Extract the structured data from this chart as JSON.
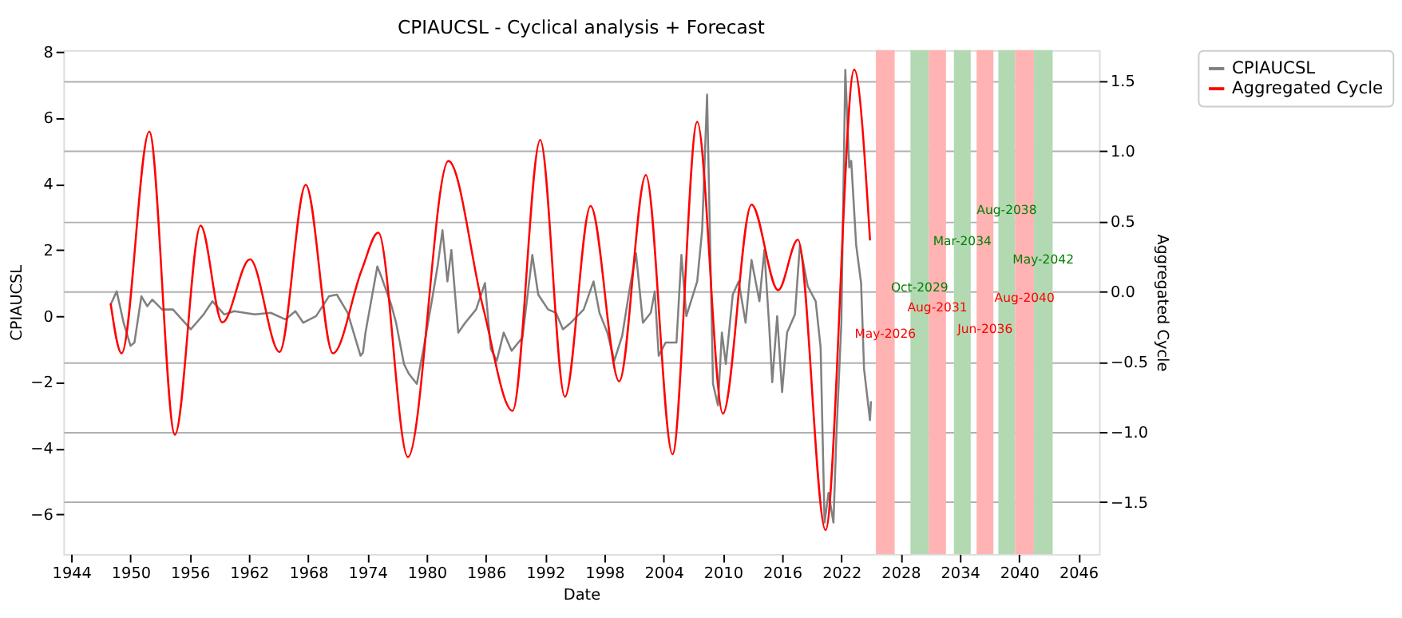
{
  "chart_data": {
    "type": "line",
    "title": "CPIAUCSL - Cyclical analysis + Forecast",
    "xlabel": "Date",
    "ylabel": "CPIAUCSL",
    "y2label": "Aggregated Cycle",
    "xlim": [
      1943.2,
      2048.1
    ],
    "xticks": [
      1944,
      1950,
      1956,
      1962,
      1968,
      1974,
      1980,
      1986,
      1992,
      1998,
      2004,
      2010,
      2016,
      2022,
      2028,
      2034,
      2040,
      2046
    ],
    "ylim": [
      -7.2,
      8.05
    ],
    "yticks": [
      -6,
      -4,
      -2,
      0,
      2,
      4,
      6,
      8
    ],
    "y2lim": [
      -1.87,
      1.72
    ],
    "y2ticks": [
      -1.5,
      {
        "value": -1,
        "label": "−1.0"
      },
      -0.5,
      {
        "value": 0,
        "label": "0.0"
      },
      0.5,
      {
        "value": 1,
        "label": "1.0"
      },
      1.5
    ],
    "grid": "y2",
    "legend": "right",
    "series": [
      {
        "name": "CPIAUCSL",
        "color": "#808080",
        "x": [
          1948.0,
          1948.6,
          1949.3,
          1950.0,
          1950.4,
          1951.1,
          1951.7,
          1952.2,
          1953.2,
          1954.3,
          1956.1,
          1957.4,
          1958.3,
          1959.5,
          1960.5,
          1962.6,
          1964.2,
          1965.7,
          1966.7,
          1967.5,
          1968.8,
          1970.1,
          1970.9,
          1972.0,
          1973.0,
          1973.3,
          1973.55,
          1973.8,
          1975.0,
          1975.4,
          1976.4,
          1976.9,
          1977.7,
          1978.2,
          1979.0,
          1979.7,
          1980.6,
          1981.1,
          1981.6,
          1982.1,
          1982.5,
          1983.2,
          1983.9,
          1985.0,
          1985.9,
          1986.5,
          1987.1,
          1987.8,
          1988.6,
          1989.7,
          1990.7,
          1991.3,
          1992.3,
          1993.1,
          1993.8,
          1994.6,
          1995.9,
          1996.9,
          1997.5,
          1998.3,
          1999.0,
          1999.8,
          2000.6,
          2001.2,
          2001.9,
          2002.7,
          2003.1,
          2003.5,
          2004.2,
          2005.3,
          2005.8,
          2006.3,
          2007.4,
          2007.9,
          2008.4,
          2009.0,
          2009.5,
          2009.9,
          2010.3,
          2011.0,
          2011.6,
          2012.3,
          2012.9,
          2013.7,
          2014.2,
          2014.7,
          2015.0,
          2015.5,
          2016.0,
          2016.5,
          2017.3,
          2017.8,
          2018.6,
          2019.4,
          2019.9,
          2020.3,
          2020.7,
          2021.2,
          2021.5,
          2022.0,
          2022.4,
          2022.8,
          2023.0,
          2023.5,
          2024.0,
          2024.3,
          2024.9,
          2025.0
        ],
        "values": [
          0.36,
          0.75,
          -0.2,
          -0.9,
          -0.8,
          0.6,
          0.3,
          0.5,
          0.2,
          0.2,
          -0.4,
          0.05,
          0.45,
          0.05,
          0.15,
          0.05,
          0.1,
          -0.1,
          0.15,
          -0.2,
          0.0,
          0.6,
          0.65,
          0.1,
          -0.9,
          -1.2,
          -1.1,
          -0.5,
          1.5,
          1.2,
          0.35,
          -0.2,
          -1.45,
          -1.75,
          -2.05,
          -0.95,
          0.6,
          1.5,
          2.6,
          1.05,
          2.0,
          -0.5,
          -0.2,
          0.2,
          1.0,
          -1.0,
          -1.35,
          -0.5,
          -1.05,
          -0.65,
          1.85,
          0.65,
          0.2,
          0.1,
          -0.4,
          -0.2,
          0.2,
          1.05,
          0.1,
          -0.5,
          -1.35,
          -0.6,
          0.9,
          1.9,
          -0.2,
          0.1,
          0.75,
          -1.2,
          -0.8,
          -0.8,
          1.85,
          0.0,
          1.05,
          2.6,
          6.7,
          -2.05,
          -2.7,
          -0.5,
          -1.45,
          0.65,
          1.05,
          -0.2,
          1.7,
          0.45,
          2.0,
          -0.35,
          -2.0,
          0.0,
          -2.3,
          -0.5,
          0.05,
          2.15,
          0.9,
          0.45,
          -0.95,
          -6.25,
          -5.35,
          -6.25,
          -3.6,
          -0.2,
          7.45,
          4.5,
          4.7,
          2.15,
          1.0,
          -1.6,
          -3.15,
          -2.6
        ]
      },
      {
        "name": "Aggregated Cycle",
        "color": "#ff0000",
        "axis": "y2",
        "x": [
          1948.0,
          1949.1,
          1951.9,
          1954.5,
          1957.1,
          1959.3,
          1962.1,
          1965.1,
          1967.75,
          1970.5,
          1973.4,
          1975.1,
          1978.1,
          1982.2,
          1985.7,
          1988.7,
          1991.5,
          1994.0,
          1996.6,
          1999.5,
          2002.2,
          2004.9,
          2007.4,
          2010.0,
          2012.9,
          2015.6,
          2017.6,
          2020.4,
          2023.3,
          2024.9
        ],
        "values": [
          -0.09,
          -0.44,
          1.14,
          -1.02,
          0.47,
          -0.22,
          0.23,
          -0.43,
          0.76,
          -0.44,
          0.15,
          0.42,
          -1.18,
          0.93,
          -0.11,
          -0.85,
          1.08,
          -0.75,
          0.61,
          -0.64,
          0.83,
          -1.16,
          1.21,
          -0.87,
          0.62,
          0.01,
          0.37,
          -1.7,
          1.58,
          0.37
        ]
      }
    ],
    "bands": [
      {
        "axis": "x",
        "from": 2025.5,
        "to": 2027.4,
        "color": "#ffb3b3",
        "label": "May-2026"
      },
      {
        "axis": "x",
        "from": 2029.0,
        "to": 2030.85,
        "color": "#b3d9b3",
        "label": "Oct-2029"
      },
      {
        "axis": "x",
        "from": 2030.85,
        "to": 2032.6,
        "color": "#ffb3b3",
        "label": "Aug-2031"
      },
      {
        "axis": "x",
        "from": 2033.4,
        "to": 2035.1,
        "color": "#b3d9b3",
        "label": "Mar-2034"
      },
      {
        "axis": "x",
        "from": 2035.7,
        "to": 2037.4,
        "color": "#ffb3b3",
        "label": "Jun-2036"
      },
      {
        "axis": "x",
        "from": 2037.9,
        "to": 2039.6,
        "color": "#b3d9b3",
        "label": "Aug-2038"
      },
      {
        "axis": "x",
        "from": 2039.6,
        "to": 2041.5,
        "color": "#ffb3b3",
        "label": "Aug-2040"
      },
      {
        "axis": "x",
        "from": 2041.5,
        "to": 2043.4,
        "color": "#b3d9b3",
        "label": "May-2042"
      }
    ]
  }
}
